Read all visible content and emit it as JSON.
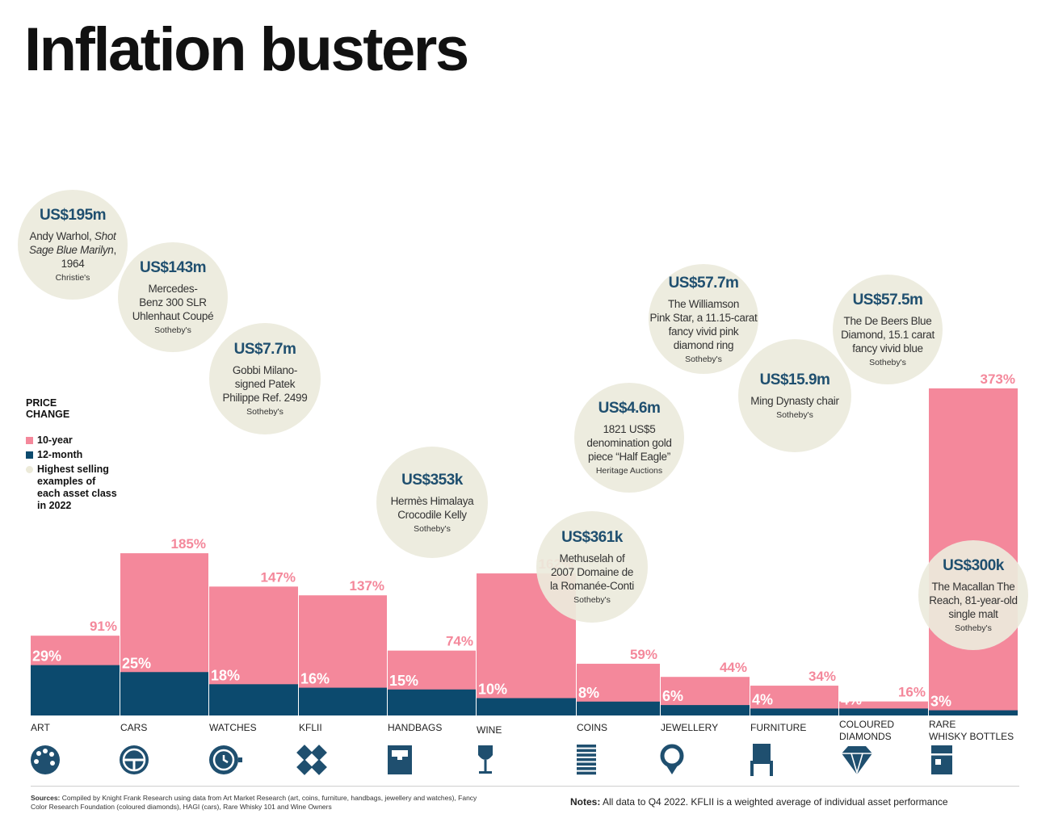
{
  "title": "Inflation busters",
  "legend": {
    "heading": "PRICE CHANGE",
    "items": [
      {
        "label": "10-year",
        "color": "#f4889b"
      },
      {
        "label": "12-month",
        "color": "#0c4a6e"
      },
      {
        "label": "Highest selling examples of each asset class in 2022",
        "color": "#ecead9"
      }
    ]
  },
  "chart_data": {
    "type": "bar",
    "categories": [
      "ART",
      "CARS",
      "WATCHES",
      "KFLII",
      "HANDBAGS",
      "WINE",
      "COINS",
      "JEWELLERY",
      "FURNITURE",
      "COLOURED DIAMONDS",
      "RARE WHISKY BOTTLES"
    ],
    "series": [
      {
        "name": "10-year",
        "values": [
          91,
          185,
          147,
          137,
          74,
          162,
          59,
          44,
          34,
          16,
          373
        ],
        "labels": [
          "91%",
          "185%",
          "147%",
          "137%",
          "74%",
          "162%",
          "59%",
          "44%",
          "34%",
          "16%",
          "373%"
        ]
      },
      {
        "name": "12-month",
        "values": [
          29,
          25,
          18,
          16,
          15,
          10,
          8,
          6,
          4,
          4,
          3
        ],
        "labels": [
          "29%",
          "25%",
          "18%",
          "16%",
          "15%",
          "10%",
          "8%",
          "6%",
          "4%",
          "4%",
          "3%"
        ]
      }
    ],
    "colors": {
      "ten_year": "#f4889b",
      "twelve_month": "#0c4a6e",
      "label": "#ffffff"
    }
  },
  "icons": [
    "palette-icon",
    "steering-wheel-icon",
    "watch-icon",
    "kflii-icon",
    "handbag-icon",
    "wine-glass-icon",
    "coin-stack-icon",
    "ring-icon",
    "chair-icon",
    "diamond-icon",
    "whisky-glass-icon"
  ],
  "bubbles": [
    {
      "price": "US$195m",
      "desc": "Andy Warhol, <i>Shot Sage Blue Marilyn</i>, 1964",
      "source": "Christie's"
    },
    {
      "price": "US$143m",
      "desc": "Mercedes-<br>Benz 300 SLR<br>Uhlenhaut Coupé",
      "source": "Sotheby's"
    },
    {
      "price": "US$7.7m",
      "desc": "Gobbi Milano-<br>signed Patek<br>Philippe Ref. 2499",
      "source": "Sotheby's"
    },
    {
      "price": "US$353k",
      "desc": "Hermès Himalaya<br>Crocodile Kelly",
      "source": "Sotheby's"
    },
    {
      "price": "US$361k",
      "desc": "Methuselah of<br>2007 Domaine de<br>la Romanée-Conti",
      "source": "Sotheby's"
    },
    {
      "price": "US$4.6m",
      "desc": "1821 US$5<br>denomination gold<br>piece “Half Eagle”",
      "source": "Heritage Auctions"
    },
    {
      "price": "US$57.7m",
      "desc": "The Williamson<br>Pink Star, a 11.15-carat<br>fancy vivid pink<br>diamond ring",
      "source": "Sotheby's"
    },
    {
      "price": "US$15.9m",
      "desc": "Ming Dynasty chair",
      "source": "Sotheby's"
    },
    {
      "price": "US$57.5m",
      "desc": "The De Beers Blue<br>Diamond, 15.1 carat<br>fancy vivid blue",
      "source": "Sotheby's"
    },
    {
      "price": "US$300k",
      "desc": "The Macallan The<br>Reach, 81-year-old<br>single malt",
      "source": "Sotheby's"
    }
  ],
  "footer": {
    "sources_label": "Sources:",
    "sources_text": "Compiled by Knight Frank Research using data from Art Market Research (art, coins, furniture, handbags, jewellery and watches), Fancy Color Research Foundation (coloured diamonds), HAGI (cars), Rare Whisky 101 and Wine Owners",
    "notes_label": "Notes:",
    "notes_text": "All data to Q4 2022. KFLII is a weighted average of individual asset performance"
  }
}
